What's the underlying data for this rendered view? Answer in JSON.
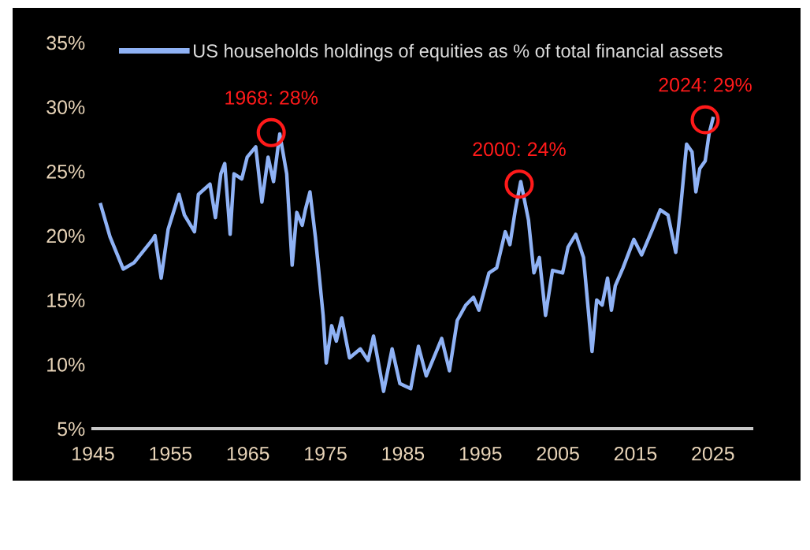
{
  "chart_data": {
    "type": "line",
    "series": [
      {
        "name": "US households holdings of equities as % of total financial assets",
        "color": "#8fb2f5",
        "x": [
          1946.0,
          1947.2,
          1948.9,
          1950.3,
          1952.7,
          1953.0,
          1953.8,
          1954.7,
          1956.1,
          1956.8,
          1958.1,
          1958.6,
          1960.1,
          1960.8,
          1961.5,
          1962.0,
          1962.7,
          1963.2,
          1964.2,
          1964.9,
          1966.0,
          1966.8,
          1967.6,
          1968.3,
          1969.1,
          1970.0,
          1970.7,
          1971.3,
          1972.0,
          1972.4,
          1973.0,
          1973.7,
          1974.7,
          1975.1,
          1975.8,
          1976.4,
          1977.1,
          1978.1,
          1979.5,
          1980.5,
          1981.2,
          1982.5,
          1983.6,
          1984.6,
          1986.0,
          1987.0,
          1988.0,
          1990.0,
          1991.0,
          1992.0,
          1993.1,
          1994.1,
          1994.8,
          1996.1,
          1997.1,
          1998.2,
          1998.8,
          1999.5,
          2000.2,
          2001.2,
          2001.9,
          2002.6,
          2003.4,
          2004.3,
          2005.6,
          2006.3,
          2007.3,
          2008.3,
          2009.4,
          2010.0,
          2010.7,
          2011.4,
          2011.9,
          2012.4,
          2013.4,
          2014.8,
          2015.8,
          2017.2,
          2018.2,
          2019.2,
          2020.2,
          2020.9,
          2021.6,
          2022.3,
          2022.8,
          2023.3,
          2024.0,
          2024.5,
          2025.0
        ],
        "values": [
          22.4,
          19.9,
          17.4,
          17.9,
          19.7,
          20.0,
          16.7,
          20.5,
          23.2,
          21.6,
          20.3,
          23.2,
          24.0,
          21.4,
          24.8,
          25.6,
          20.1,
          24.8,
          24.4,
          26.1,
          26.9,
          22.6,
          26.1,
          24.2,
          27.9,
          24.8,
          17.7,
          21.8,
          20.8,
          22.0,
          23.4,
          19.9,
          13.8,
          10.1,
          13.0,
          11.8,
          13.6,
          10.5,
          11.2,
          10.3,
          12.2,
          7.9,
          11.2,
          8.5,
          8.1,
          11.4,
          9.1,
          12.0,
          9.5,
          13.4,
          14.6,
          15.2,
          14.2,
          17.1,
          17.5,
          20.3,
          19.3,
          22.0,
          24.2,
          21.2,
          17.1,
          18.3,
          13.8,
          17.3,
          17.1,
          19.1,
          20.1,
          18.3,
          11.0,
          15.0,
          14.6,
          16.7,
          14.2,
          16.1,
          17.5,
          19.7,
          18.5,
          20.5,
          22.0,
          21.6,
          18.7,
          22.6,
          27.1,
          26.5,
          23.4,
          25.2,
          25.8,
          27.9,
          29.1
        ]
      }
    ],
    "xlim": [
      1945,
      2030
    ],
    "xticks": [
      1945,
      1955,
      1965,
      1975,
      1985,
      1995,
      2005,
      2015,
      2025
    ],
    "ylim": [
      5,
      35
    ],
    "yticks": [
      {
        "value": 5,
        "label": "5%"
      },
      {
        "value": 10,
        "label": "10%"
      },
      {
        "value": 15,
        "label": "15%"
      },
      {
        "value": 20,
        "label": "20%"
      },
      {
        "value": 25,
        "label": "25%"
      },
      {
        "value": 30,
        "label": "30%"
      },
      {
        "value": 35,
        "label": "35%"
      }
    ],
    "annotations": [
      {
        "text": "1968: 28%",
        "x": 1968,
        "y": 28
      },
      {
        "text": "2000: 24%",
        "x": 2000,
        "y": 24
      },
      {
        "text": "2024: 29%",
        "x": 2024,
        "y": 29
      }
    ],
    "grid": false,
    "legend": "top"
  }
}
